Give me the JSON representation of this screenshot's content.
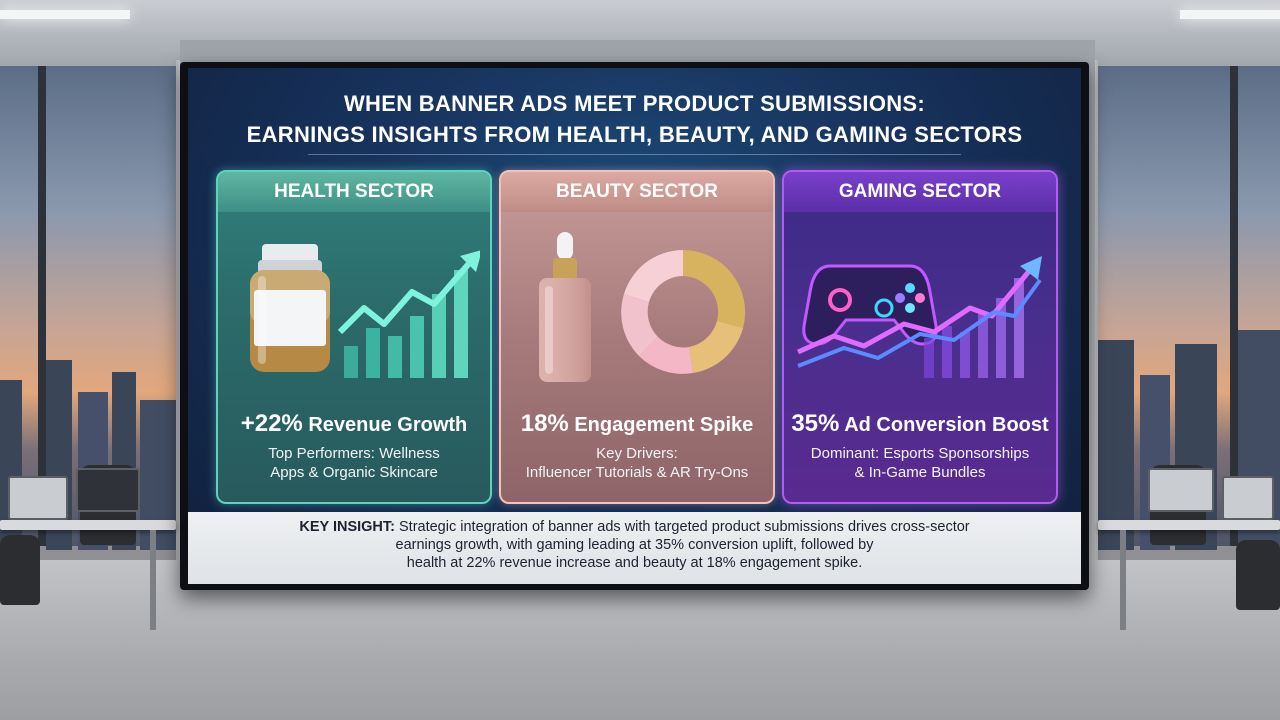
{
  "title": {
    "line1": "WHEN BANNER ADS MEET PRODUCT SUBMISSIONS:",
    "line2": "EARNINGS INSIGHTS FROM HEALTH, BEAUTY, AND GAMING SECTORS"
  },
  "cards": [
    {
      "heading": "HEALTH SECTOR",
      "metric_value": "+22%",
      "metric_label": "Revenue Growth",
      "sub_line1": "Top Performers: Wellness",
      "sub_line2": "Apps & Organic Skincare",
      "icon": "supplement-bottle-icon",
      "accent": "#5fd2bd"
    },
    {
      "heading": "BEAUTY SECTOR",
      "metric_value": "18%",
      "metric_label": "Engagement Spike",
      "sub_line1": "Key Drivers:",
      "sub_line2": "Influencer Tutorials & AR Try-Ons",
      "icon": "serum-dropper-bottle-icon",
      "accent": "#f1c3b9"
    },
    {
      "heading": "GAMING SECTOR",
      "metric_value": "35%",
      "metric_label": "Ad Conversion Boost",
      "sub_line1": "Dominant: Esports Sponsorships",
      "sub_line2": "& In-Game Bundles",
      "icon": "game-controller-icon",
      "accent": "#b45cf0"
    }
  ],
  "insight": {
    "label": "KEY INSIGHT:",
    "line1": "Strategic integration of banner ads with targeted product submissions drives cross-sector",
    "line2": "earnings growth, with gaming leading at 35% conversion uplift, followed by",
    "line3": "health at 22% revenue increase and beauty at 18% engagement spike."
  }
}
